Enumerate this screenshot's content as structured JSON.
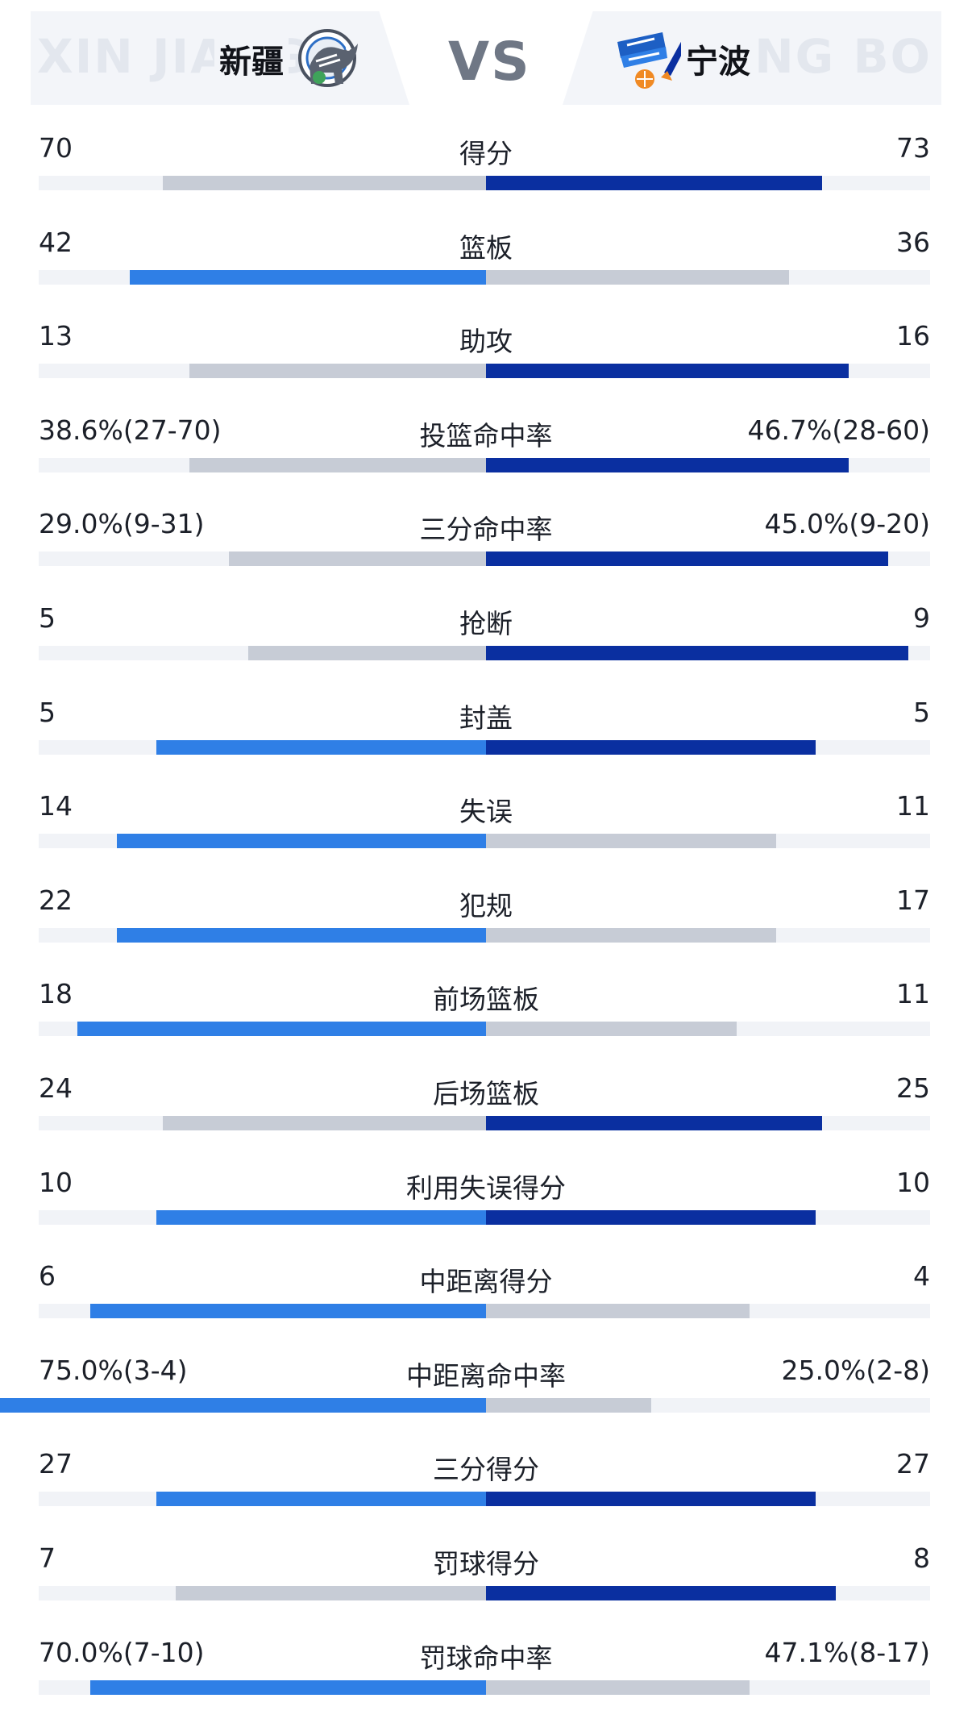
{
  "header": {
    "home_watermark": "XIN JIANG",
    "away_watermark": "NING BO",
    "home_team": "新疆",
    "away_team": "宁波",
    "vs": "VS"
  },
  "colors": {
    "home_highlight": "#2f7fe6",
    "away_highlight": "#0a2fa0",
    "inactive": "#c7ccd6",
    "track": "#f1f3f7"
  },
  "stats": [
    {
      "label": "得分",
      "home": "70",
      "away": "73",
      "home_share": 0.49,
      "away_share": 0.51,
      "leader": "away"
    },
    {
      "label": "篮板",
      "home": "42",
      "away": "36",
      "home_share": 0.54,
      "away_share": 0.46,
      "leader": "home"
    },
    {
      "label": "助攻",
      "home": "13",
      "away": "16",
      "home_share": 0.45,
      "away_share": 0.55,
      "leader": "away"
    },
    {
      "label": "投篮命中率",
      "home": "38.6%(27-70)",
      "away": "46.7%(28-60)",
      "home_share": 0.45,
      "away_share": 0.55,
      "leader": "away"
    },
    {
      "label": "三分命中率",
      "home": "29.0%(9-31)",
      "away": "45.0%(9-20)",
      "home_share": 0.39,
      "away_share": 0.61,
      "leader": "away"
    },
    {
      "label": "抢断",
      "home": "5",
      "away": "9",
      "home_share": 0.36,
      "away_share": 0.64,
      "leader": "away"
    },
    {
      "label": "封盖",
      "home": "5",
      "away": "5",
      "home_share": 0.5,
      "away_share": 0.5,
      "leader": "both"
    },
    {
      "label": "失误",
      "home": "14",
      "away": "11",
      "home_share": 0.56,
      "away_share": 0.44,
      "leader": "home"
    },
    {
      "label": "犯规",
      "home": "22",
      "away": "17",
      "home_share": 0.56,
      "away_share": 0.44,
      "leader": "home"
    },
    {
      "label": "前场篮板",
      "home": "18",
      "away": "11",
      "home_share": 0.62,
      "away_share": 0.38,
      "leader": "home"
    },
    {
      "label": "后场篮板",
      "home": "24",
      "away": "25",
      "home_share": 0.49,
      "away_share": 0.51,
      "leader": "away"
    },
    {
      "label": "利用失误得分",
      "home": "10",
      "away": "10",
      "home_share": 0.5,
      "away_share": 0.5,
      "leader": "both"
    },
    {
      "label": "中距离得分",
      "home": "6",
      "away": "4",
      "home_share": 0.6,
      "away_share": 0.4,
      "leader": "home"
    },
    {
      "label": "中距离命中率",
      "home": "75.0%(3-4)",
      "away": "25.0%(2-8)",
      "home_share": 0.75,
      "away_share": 0.25,
      "leader": "home"
    },
    {
      "label": "三分得分",
      "home": "27",
      "away": "27",
      "home_share": 0.5,
      "away_share": 0.5,
      "leader": "both"
    },
    {
      "label": "罚球得分",
      "home": "7",
      "away": "8",
      "home_share": 0.47,
      "away_share": 0.53,
      "leader": "away"
    },
    {
      "label": "罚球命中率",
      "home": "70.0%(7-10)",
      "away": "47.1%(8-17)",
      "home_share": 0.6,
      "away_share": 0.4,
      "leader": "home"
    }
  ]
}
